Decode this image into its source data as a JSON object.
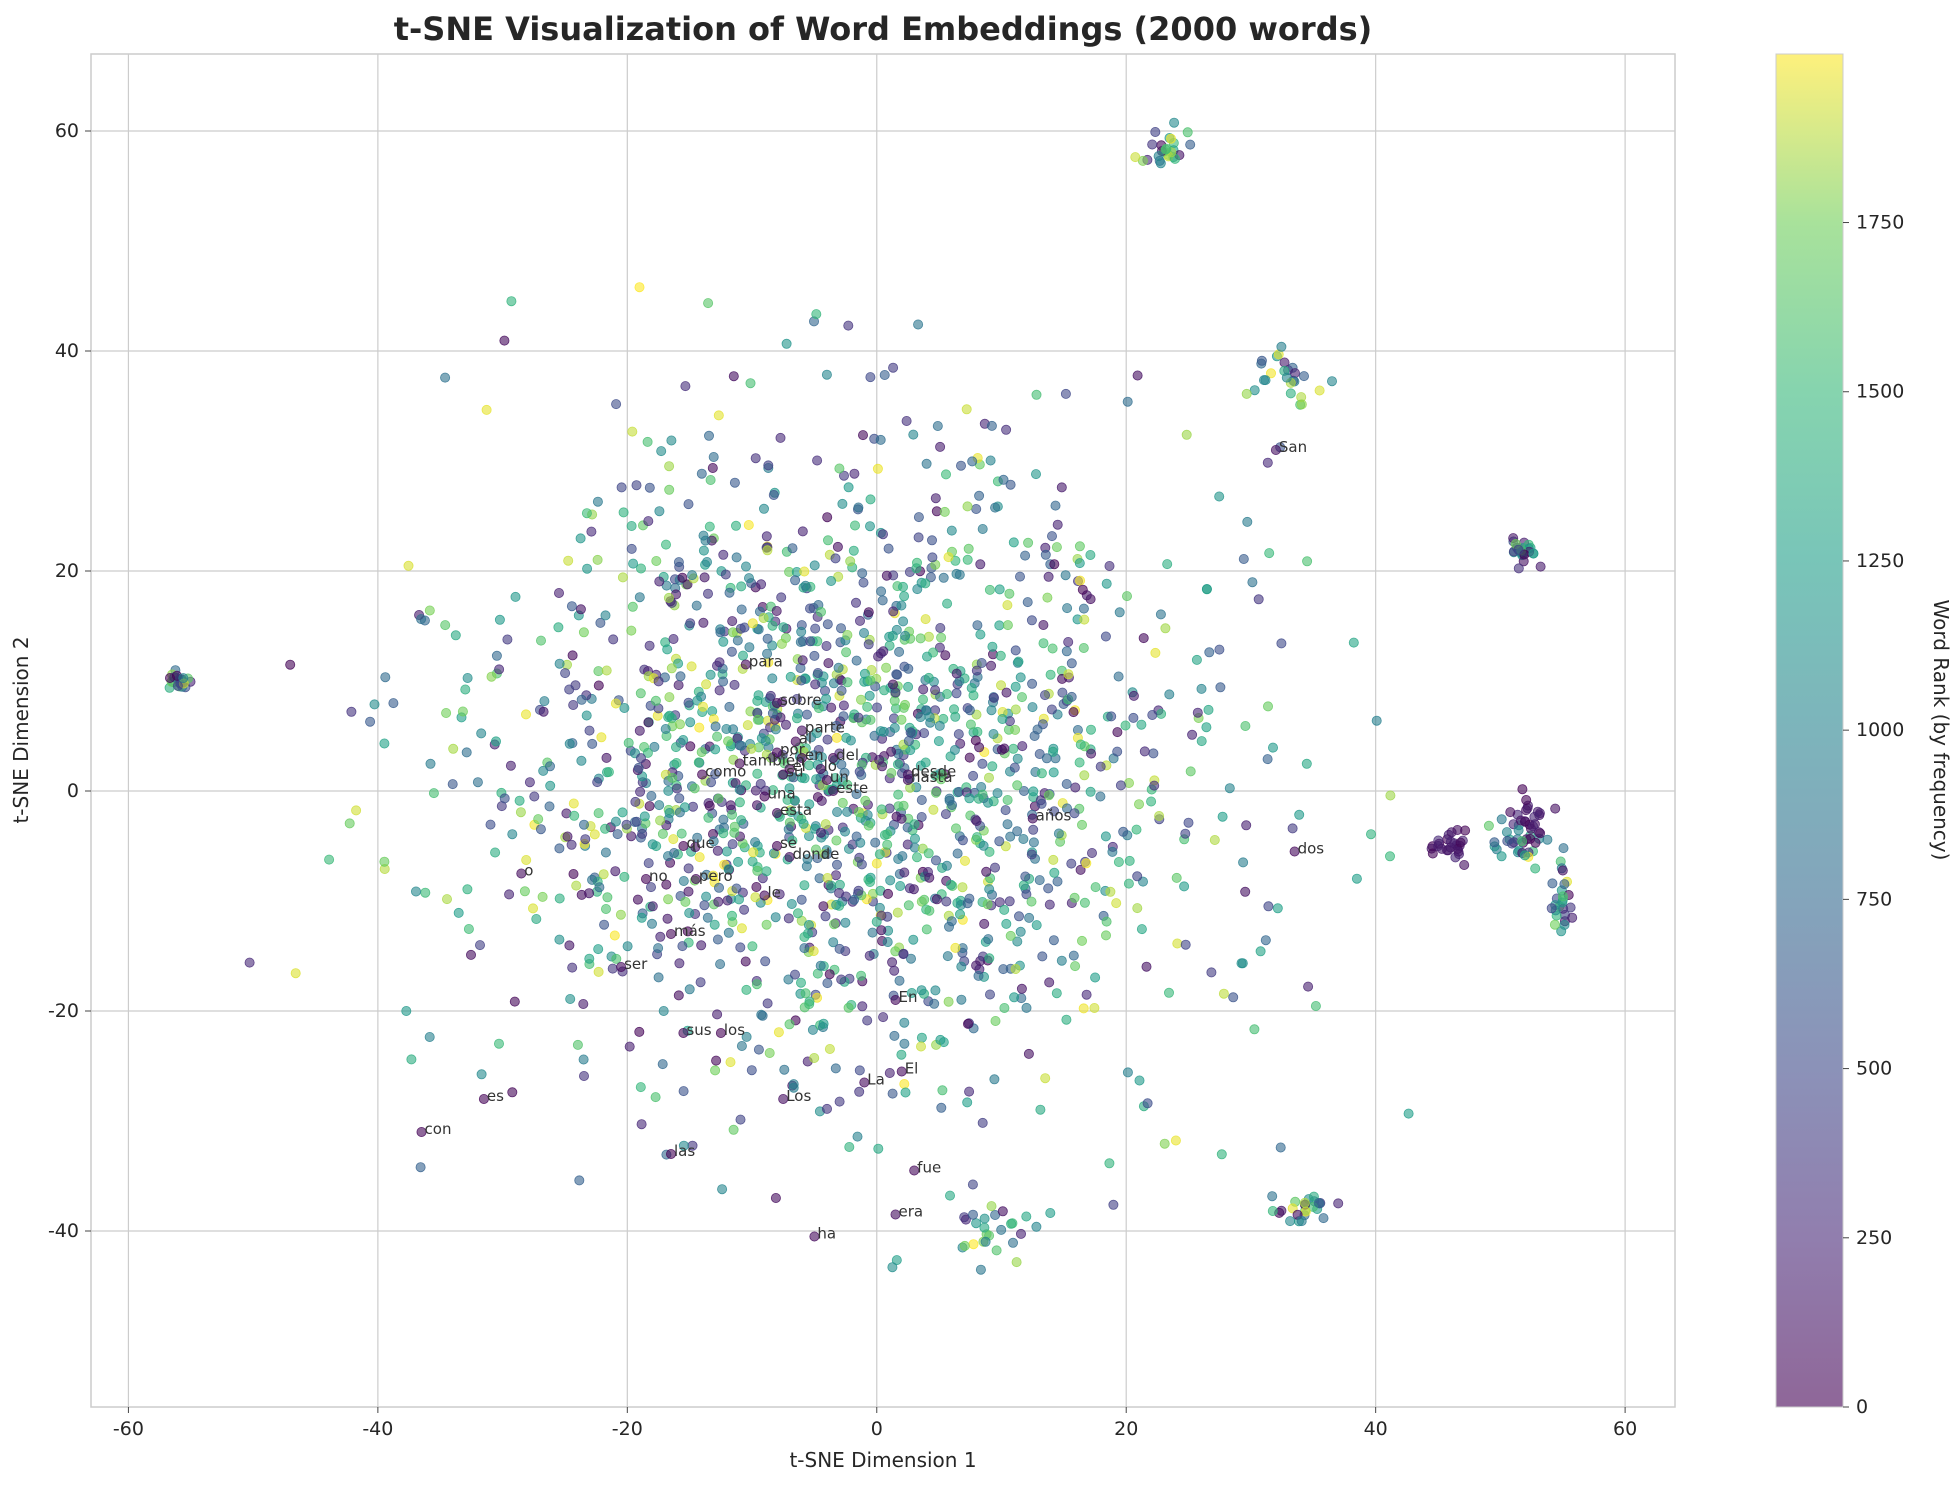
{
  "chart_data": {
    "type": "scatter",
    "title": "t-SNE Visualization of Word Embeddings (2000 words)",
    "xlabel": "t-SNE Dimension 1",
    "ylabel": "t-SNE Dimension 2",
    "xlim": [
      -63,
      64
    ],
    "ylim": [
      -56,
      67
    ],
    "xticks": [
      -60,
      -40,
      -20,
      0,
      20,
      40,
      60
    ],
    "yticks": [
      -40,
      -20,
      0,
      20,
      40,
      60
    ],
    "grid": true,
    "colorbar": {
      "label": "Word Rank (by frequency)",
      "range": [
        0,
        1999
      ],
      "ticks": [
        0,
        250,
        500,
        750,
        1000,
        1250,
        1500,
        1750
      ],
      "colormap": "viridis",
      "alpha": 0.6
    },
    "n_points": 2000,
    "labeled_points": [
      {
        "word": "para",
        "x": -10.5,
        "y": 11.5,
        "rank": 25
      },
      {
        "word": "sobre",
        "x": -8.0,
        "y": 8.0,
        "rank": 45
      },
      {
        "word": "parte",
        "x": -6.0,
        "y": 5.5,
        "rank": 90
      },
      {
        "word": "que",
        "x": -15.5,
        "y": -5.0,
        "rank": 3
      },
      {
        "word": "con",
        "x": -36.5,
        "y": -31.0,
        "rank": 12
      },
      {
        "word": "es",
        "x": -31.5,
        "y": -28.0,
        "rank": 16
      },
      {
        "word": "o",
        "x": -28.5,
        "y": -7.5,
        "rank": 70
      },
      {
        "word": "no",
        "x": -18.5,
        "y": -8.0,
        "rank": 14
      },
      {
        "word": "pero",
        "x": -14.5,
        "y": -8.0,
        "rank": 40
      },
      {
        "word": "más",
        "x": -16.5,
        "y": -13.0,
        "rank": 30
      },
      {
        "word": "ser",
        "x": -20.5,
        "y": -16.0,
        "rank": 60
      },
      {
        "word": "sus",
        "x": -15.5,
        "y": -22.0,
        "rank": 35
      },
      {
        "word": "los",
        "x": -12.5,
        "y": -22.0,
        "rank": 6
      },
      {
        "word": "las",
        "x": -16.5,
        "y": -33.0,
        "rank": 10
      },
      {
        "word": "Los",
        "x": -7.5,
        "y": -28.0,
        "rank": 80
      },
      {
        "word": "ha",
        "x": -5.0,
        "y": -40.5,
        "rank": 55
      },
      {
        "word": "La",
        "x": -1.0,
        "y": -26.5,
        "rank": 50
      },
      {
        "word": "El",
        "x": 2.0,
        "y": -25.5,
        "rank": 48
      },
      {
        "word": "En",
        "x": 1.5,
        "y": -19.0,
        "rank": 52
      },
      {
        "word": "fue",
        "x": 3.0,
        "y": -34.5,
        "rank": 42
      },
      {
        "word": "era",
        "x": 1.5,
        "y": -38.5,
        "rank": 75
      },
      {
        "word": "como",
        "x": -14.0,
        "y": 1.5,
        "rank": 20
      },
      {
        "word": "una",
        "x": -9.0,
        "y": -0.5,
        "rank": 18
      },
      {
        "word": "su",
        "x": -7.5,
        "y": 1.5,
        "rank": 17
      },
      {
        "word": "esta",
        "x": -8.0,
        "y": -2.0,
        "rank": 65
      },
      {
        "word": "se",
        "x": -8.0,
        "y": -5.0,
        "rank": 11
      },
      {
        "word": "donde",
        "x": -7.0,
        "y": -6.0,
        "rank": 85
      },
      {
        "word": "le",
        "x": -9.0,
        "y": -9.5,
        "rank": 58
      },
      {
        "word": "del",
        "x": -3.5,
        "y": 3.0,
        "rank": 8
      },
      {
        "word": "este",
        "x": -3.5,
        "y": 0.0,
        "rank": 56
      },
      {
        "word": "desde",
        "x": 2.5,
        "y": 1.5,
        "rank": 66
      },
      {
        "word": "hasta",
        "x": 2.5,
        "y": 1.0,
        "rank": 72
      },
      {
        "word": "años",
        "x": 12.5,
        "y": -2.5,
        "rank": 78
      },
      {
        "word": "dos",
        "x": 33.5,
        "y": -5.5,
        "rank": 46
      },
      {
        "word": "San",
        "x": 32.0,
        "y": 31.0,
        "rank": 95
      },
      {
        "word": "también",
        "x": -11.0,
        "y": 2.5,
        "rank": 38
      },
      {
        "word": "por",
        "x": -8.0,
        "y": 3.5,
        "rank": 9
      },
      {
        "word": "al",
        "x": -6.5,
        "y": 4.5,
        "rank": 22
      },
      {
        "word": "lo",
        "x": -4.5,
        "y": 2.0,
        "rank": 24
      },
      {
        "word": "un",
        "x": -4.0,
        "y": 1.0,
        "rank": 7
      },
      {
        "word": "en",
        "x": -6.0,
        "y": 3.0,
        "rank": 4
      },
      {
        "word": "el",
        "x": -7.0,
        "y": 2.0,
        "rank": 2
      }
    ]
  }
}
